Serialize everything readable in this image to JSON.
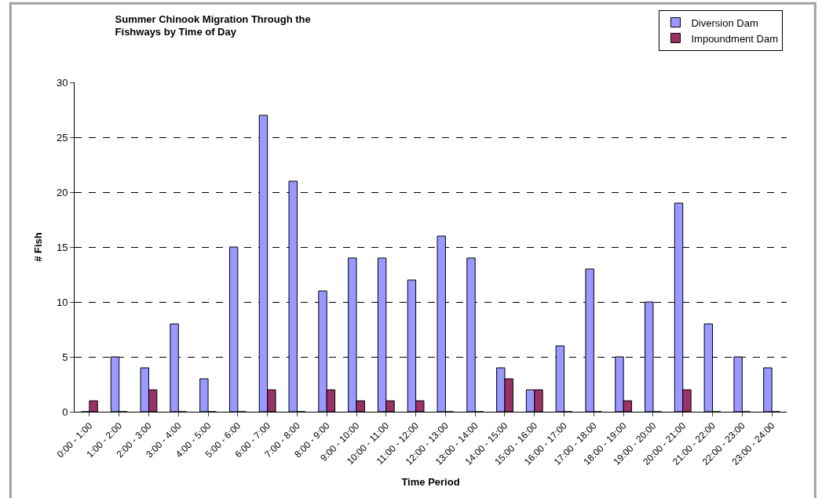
{
  "chart_data": {
    "type": "bar",
    "title": "Summer Chinook Migration Through the Fishways by Time of Day",
    "xlabel": "Time Period",
    "ylabel": "# Fish",
    "categories": [
      "0:00 - 1:00",
      "1:00 - 2:00",
      "2:00 - 3:00",
      "3:00 - 4:00",
      "4:00 - 5:00",
      "5:00 - 6:00",
      "6:00 - 7:00",
      "7:00 - 8:00",
      "8:00 - 9:00",
      "9:00 - 10:00",
      "10:00 - 11:00",
      "11:00 - 12:00",
      "12:00 - 13:00",
      "13:00 - 14:00",
      "14:00 - 15:00",
      "15:00 - 16:00",
      "16:00 - 17:00",
      "17:00 - 18:00",
      "18:00 - 19:00",
      "19:00 - 20:00",
      "20:00 - 21:00",
      "21:00 - 22:00",
      "22:00 - 23:00",
      "23:00 - 24:00"
    ],
    "series": [
      {
        "name": "Diversion Dam",
        "color": "#9999ff",
        "values": [
          0,
          5,
          4,
          8,
          3,
          15,
          27,
          21,
          11,
          14,
          14,
          12,
          16,
          14,
          4,
          2,
          6,
          13,
          5,
          10,
          19,
          8,
          5,
          4
        ]
      },
      {
        "name": "Impoundment Dam",
        "color": "#993366",
        "values": [
          1,
          0,
          2,
          0,
          0,
          0,
          2,
          0,
          2,
          1,
          1,
          1,
          0,
          0,
          3,
          2,
          0,
          0,
          1,
          0,
          2,
          0,
          0,
          0
        ]
      }
    ],
    "ylim": [
      0,
      30
    ],
    "yticks": [
      0,
      5,
      10,
      15,
      20,
      25,
      30
    ],
    "grid": "y",
    "legend": "top right"
  }
}
